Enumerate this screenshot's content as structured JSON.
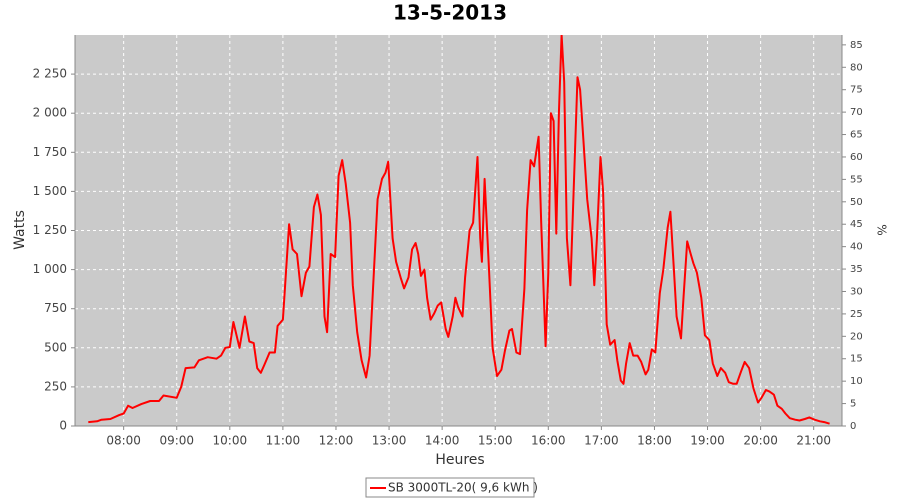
{
  "chart_data": {
    "type": "line",
    "title": "13-5-2013",
    "x_label": "Heures",
    "y_label": "Watts",
    "y2_label": "%",
    "x": [
      "07:20",
      "07:30",
      "07:35",
      "07:45",
      "07:55",
      "08:00",
      "08:05",
      "08:10",
      "08:20",
      "08:30",
      "08:40",
      "08:45",
      "09:00",
      "09:05",
      "09:10",
      "09:20",
      "09:25",
      "09:35",
      "09:45",
      "09:50",
      "09:55",
      "10:00",
      "10:04",
      "10:11",
      "10:17",
      "10:22",
      "10:27",
      "10:31",
      "10:35",
      "10:39",
      "10:45",
      "10:51",
      "10:54",
      "11:00",
      "11:07",
      "11:11",
      "11:16",
      "11:21",
      "11:26",
      "11:30",
      "11:35",
      "11:39",
      "11:43",
      "11:47",
      "11:50",
      "11:54",
      "11:59",
      "12:03",
      "12:07",
      "12:11",
      "12:16",
      "12:19",
      "12:24",
      "12:29",
      "12:34",
      "12:38",
      "12:43",
      "12:47",
      "12:52",
      "12:56",
      "12:59",
      "13:04",
      "13:08",
      "13:13",
      "13:17",
      "13:22",
      "13:26",
      "13:30",
      "13:33",
      "13:36",
      "13:40",
      "13:43",
      "13:47",
      "13:51",
      "13:55",
      "13:59",
      "14:04",
      "14:07",
      "14:12",
      "14:15",
      "14:18",
      "14:23",
      "14:26",
      "14:31",
      "14:35",
      "14:40",
      "14:43",
      "14:45",
      "14:48",
      "14:53",
      "14:57",
      "15:02",
      "15:07",
      "15:11",
      "15:16",
      "15:19",
      "15:24",
      "15:28",
      "15:33",
      "15:36",
      "15:40",
      "15:44",
      "15:49",
      "15:52",
      "15:57",
      "16:00",
      "16:03",
      "16:06",
      "16:09",
      "16:12",
      "16:15",
      "16:18",
      "16:21",
      "16:25",
      "16:28",
      "16:33",
      "16:36",
      "16:40",
      "16:44",
      "16:49",
      "16:52",
      "16:55",
      "16:59",
      "17:02",
      "17:06",
      "17:10",
      "17:15",
      "17:18",
      "17:22",
      "17:25",
      "17:28",
      "17:32",
      "17:36",
      "17:41",
      "17:45",
      "17:50",
      "17:53",
      "17:57",
      "18:01",
      "18:06",
      "18:10",
      "18:15",
      "18:18",
      "18:22",
      "18:25",
      "18:30",
      "18:33",
      "18:37",
      "18:41",
      "18:44",
      "18:48",
      "18:53",
      "18:57",
      "19:02",
      "19:06",
      "19:11",
      "19:15",
      "19:20",
      "19:24",
      "19:29",
      "19:33",
      "19:38",
      "19:42",
      "19:47",
      "19:52",
      "19:57",
      "20:01",
      "20:06",
      "20:10",
      "20:15",
      "20:19",
      "20:24",
      "20:28",
      "20:33",
      "20:39",
      "20:44",
      "20:50",
      "20:55",
      "21:01",
      "21:07",
      "21:12",
      "21:18"
    ],
    "series": [
      {
        "name": "SB 3000TL-20( 9,6 kWh )",
        "color": "#ff0000",
        "values": [
          25,
          30,
          40,
          45,
          70,
          80,
          130,
          115,
          140,
          160,
          160,
          195,
          180,
          250,
          370,
          375,
          420,
          440,
          430,
          450,
          500,
          505,
          665,
          500,
          700,
          540,
          530,
          370,
          340,
          390,
          470,
          470,
          640,
          680,
          1290,
          1130,
          1100,
          830,
          980,
          1020,
          1400,
          1480,
          1350,
          700,
          600,
          1100,
          1080,
          1600,
          1700,
          1550,
          1300,
          900,
          600,
          420,
          310,
          450,
          1000,
          1450,
          1580,
          1620,
          1690,
          1200,
          1050,
          950,
          880,
          950,
          1130,
          1170,
          1100,
          960,
          1000,
          820,
          680,
          720,
          770,
          790,
          620,
          570,
          700,
          820,
          760,
          700,
          950,
          1250,
          1300,
          1720,
          1200,
          1050,
          1580,
          1000,
          500,
          320,
          360,
          480,
          610,
          620,
          470,
          460,
          880,
          1380,
          1700,
          1660,
          1850,
          1300,
          510,
          980,
          2000,
          1950,
          1230,
          2000,
          2500,
          2200,
          1200,
          900,
          1400,
          2230,
          2150,
          1800,
          1450,
          1200,
          900,
          1200,
          1720,
          1500,
          650,
          520,
          550,
          420,
          290,
          270,
          400,
          530,
          450,
          450,
          410,
          330,
          360,
          490,
          470,
          850,
          1000,
          1270,
          1370,
          1000,
          700,
          560,
          830,
          1180,
          1100,
          1040,
          980,
          820,
          580,
          550,
          400,
          320,
          370,
          340,
          280,
          270,
          270,
          350,
          410,
          370,
          240,
          150,
          180,
          230,
          220,
          200,
          130,
          110,
          80,
          50,
          40,
          35,
          45,
          55,
          40,
          30,
          25,
          15
        ]
      }
    ],
    "xlim": [
      "07:05",
      "21:32"
    ],
    "xticks": [
      "08:00",
      "09:00",
      "10:00",
      "11:00",
      "12:00",
      "13:00",
      "14:00",
      "15:00",
      "16:00",
      "17:00",
      "18:00",
      "19:00",
      "20:00",
      "21:00"
    ],
    "ylim": [
      0,
      2500
    ],
    "yticks": [
      0,
      250,
      500,
      750,
      {
        "value": 1000,
        "label": "1 000"
      },
      {
        "value": 1250,
        "label": "1 250"
      },
      {
        "value": 1500,
        "label": "1 500"
      },
      {
        "value": 1750,
        "label": "1 750"
      },
      {
        "value": 2000,
        "label": "2 000"
      },
      {
        "value": 2250,
        "label": "2 250"
      }
    ],
    "y2lim": [
      0,
      87.2
    ],
    "y2ticks": [
      0,
      5,
      10,
      15,
      20,
      25,
      30,
      35,
      40,
      45,
      50,
      55,
      60,
      65,
      70,
      75,
      80,
      85
    ],
    "grid": true
  }
}
